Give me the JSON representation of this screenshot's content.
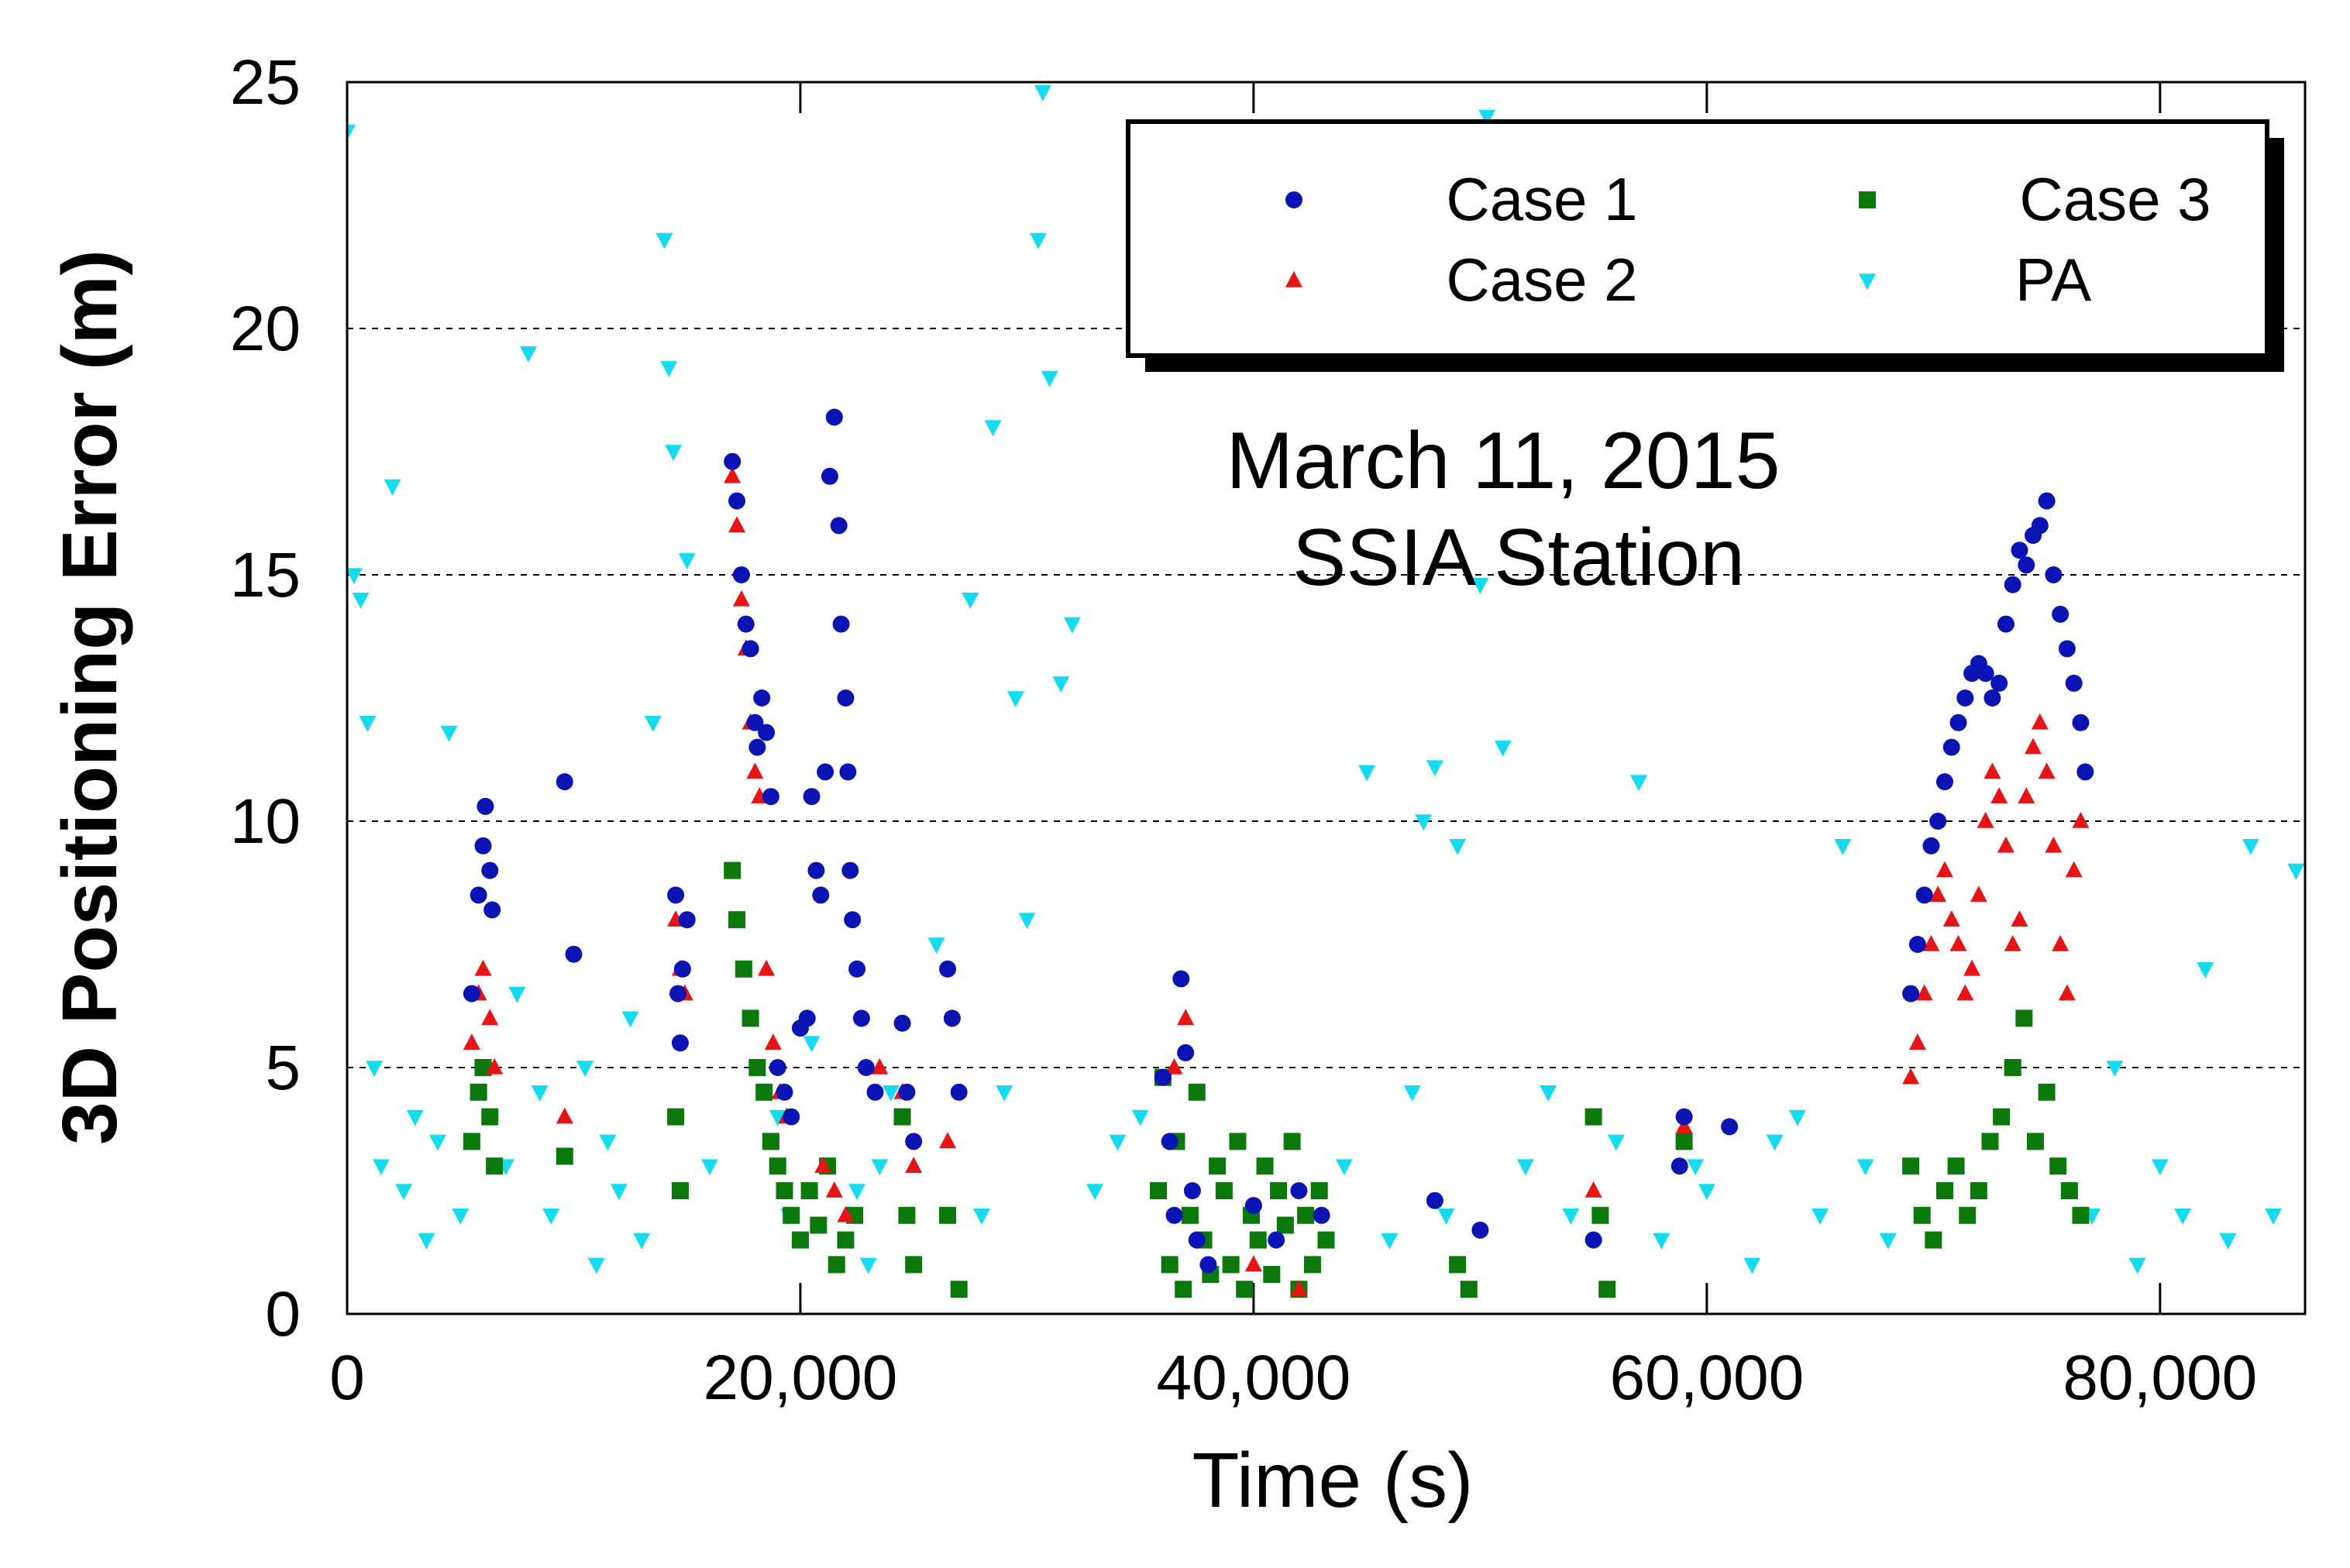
{
  "chart_data": {
    "type": "scatter",
    "title": "",
    "annotation": [
      "March 11, 2015",
      "SSIA Station"
    ],
    "xlabel": "Time (s)",
    "ylabel": "3D Positioning Error (m)",
    "xlim": [
      0,
      86400
    ],
    "ylim": [
      0,
      25
    ],
    "x_ticks": [
      0,
      20000,
      40000,
      60000,
      80000
    ],
    "x_tick_labels": [
      "0",
      "20,000",
      "40,000",
      "60,000",
      "80,000"
    ],
    "y_ticks": [
      0,
      5,
      10,
      15,
      20,
      25
    ],
    "y_tick_labels": [
      "0",
      "5",
      "10",
      "15",
      "20",
      "25"
    ],
    "gridlines_y": [
      5,
      10,
      15,
      20
    ],
    "legend_position": "top-right",
    "series": [
      {
        "name": "Case 1",
        "marker": "circle",
        "color": "#0a14b4",
        "x": [
          5500,
          5800,
          6000,
          6100,
          6300,
          6400,
          9600,
          10000,
          14500,
          14600,
          14700,
          14800,
          15000,
          17000,
          17200,
          17400,
          17600,
          17800,
          18000,
          18100,
          18300,
          18500,
          18700,
          19000,
          19300,
          19600,
          20000,
          20300,
          20500,
          20700,
          20900,
          21100,
          21300,
          21500,
          21700,
          21800,
          22000,
          22100,
          22200,
          22300,
          22500,
          22700,
          22900,
          23300,
          24500,
          24700,
          25000,
          26500,
          26700,
          27000,
          36000,
          36300,
          36500,
          36800,
          37000,
          37300,
          37500,
          38000,
          40000,
          41000,
          42000,
          43000,
          48000,
          50000,
          55000,
          58800,
          59000,
          61000,
          69000,
          69300,
          69600,
          69900,
          70200,
          70500,
          70800,
          71100,
          71400,
          71700,
          72000,
          72300,
          72600,
          72900,
          73200,
          73500,
          73800,
          74100,
          74400,
          74700,
          75000,
          75300,
          75600,
          75900,
          76200,
          76500,
          76700
        ],
        "y": [
          6.5,
          8.5,
          9.5,
          10.3,
          9.0,
          8.2,
          10.8,
          7.3,
          8.5,
          6.5,
          5.5,
          7.0,
          8.0,
          17.3,
          16.5,
          15.0,
          14.0,
          13.5,
          12.0,
          11.5,
          12.5,
          11.8,
          10.5,
          5.0,
          4.5,
          4.0,
          5.8,
          6.0,
          10.5,
          9.0,
          8.5,
          11.0,
          17.0,
          18.2,
          16.0,
          14.0,
          12.5,
          11.0,
          9.0,
          8.0,
          7.0,
          6.0,
          5.0,
          4.5,
          5.9,
          4.5,
          3.5,
          7.0,
          6.0,
          4.5,
          4.8,
          3.5,
          2.0,
          6.8,
          5.3,
          2.5,
          1.5,
          1.0,
          2.2,
          1.5,
          2.5,
          2.0,
          2.3,
          1.7,
          1.5,
          3.0,
          4.0,
          3.8,
          6.5,
          7.5,
          8.5,
          9.5,
          10.0,
          10.8,
          11.5,
          12.0,
          12.5,
          13.0,
          13.2,
          13.0,
          12.5,
          12.8,
          14.0,
          14.8,
          15.5,
          15.2,
          15.8,
          16.0,
          16.5,
          15.0,
          14.2,
          13.5,
          12.8,
          12.0,
          11.0
        ]
      },
      {
        "name": "Case 2",
        "marker": "triangle-up",
        "color": "#e61414",
        "x": [
          5500,
          5800,
          6000,
          6300,
          6500,
          9600,
          14500,
          14700,
          14900,
          17000,
          17200,
          17400,
          17600,
          17800,
          18000,
          18200,
          18500,
          18800,
          19100,
          19400,
          21000,
          21500,
          22000,
          23500,
          24500,
          25000,
          26500,
          36500,
          37000,
          40000,
          42000,
          55000,
          59000,
          69000,
          69300,
          69600,
          69900,
          70200,
          70500,
          70800,
          71100,
          71400,
          71700,
          72000,
          72300,
          72600,
          72900,
          73200,
          73500,
          73800,
          74100,
          74400,
          74700,
          75000,
          75300,
          75600,
          75900,
          76200,
          76500
        ],
        "y": [
          5.5,
          6.5,
          7.0,
          6.0,
          5.0,
          4.0,
          8.0,
          7.0,
          6.5,
          17.0,
          16.0,
          14.5,
          13.5,
          12.0,
          11.0,
          10.5,
          7.0,
          5.5,
          4.5,
          4.0,
          3.0,
          2.5,
          2.0,
          5.0,
          4.5,
          3.0,
          3.5,
          5.0,
          6.0,
          1.0,
          0.5,
          2.5,
          3.8,
          4.8,
          5.5,
          6.5,
          7.5,
          8.5,
          9.0,
          8.0,
          7.5,
          6.5,
          7.0,
          8.5,
          10.0,
          11.0,
          10.5,
          9.5,
          7.5,
          8.0,
          10.5,
          11.5,
          12.0,
          11.0,
          9.5,
          7.5,
          6.5,
          9.0,
          10.0
        ]
      },
      {
        "name": "Case 3",
        "marker": "square",
        "color": "#0a780a",
        "x": [
          5500,
          5800,
          6000,
          6300,
          6500,
          9600,
          14500,
          14700,
          17000,
          17200,
          17500,
          17800,
          18100,
          18400,
          18700,
          19000,
          19300,
          19600,
          20000,
          20400,
          20800,
          21200,
          21600,
          22000,
          22400,
          24500,
          24700,
          25000,
          26500,
          27000,
          35800,
          36000,
          36300,
          36600,
          36900,
          37200,
          37500,
          37800,
          38100,
          38400,
          38700,
          39000,
          39300,
          39600,
          39900,
          40200,
          40500,
          40800,
          41100,
          41400,
          41700,
          42000,
          42300,
          42600,
          42900,
          43200,
          49000,
          49500,
          55000,
          55300,
          55600,
          59000,
          69000,
          69500,
          70000,
          70500,
          71000,
          71500,
          72000,
          72500,
          73000,
          73500,
          74000,
          74500,
          75000,
          75500,
          76000,
          76500
        ],
        "y": [
          3.5,
          4.5,
          5.0,
          4.0,
          3.0,
          3.2,
          4.0,
          2.5,
          9.0,
          8.0,
          7.0,
          6.0,
          5.0,
          4.5,
          3.5,
          3.0,
          2.5,
          2.0,
          1.5,
          2.5,
          1.8,
          3.0,
          1.0,
          1.5,
          2.0,
          4.0,
          2.0,
          1.0,
          2.0,
          0.5,
          2.5,
          4.8,
          1.0,
          3.5,
          0.5,
          2.0,
          4.5,
          1.5,
          0.8,
          3.0,
          2.5,
          1.0,
          3.5,
          0.5,
          2.0,
          1.5,
          3.0,
          0.8,
          2.5,
          1.8,
          3.5,
          0.5,
          2.0,
          1.0,
          2.5,
          1.5,
          1.0,
          0.5,
          4.0,
          2.0,
          0.5,
          3.5,
          3.0,
          2.0,
          1.5,
          2.5,
          3.0,
          2.0,
          2.5,
          3.5,
          4.0,
          5.0,
          6.0,
          3.5,
          4.5,
          3.0,
          2.5,
          2.0
        ]
      },
      {
        "name": "PA",
        "marker": "triangle-down",
        "color": "#14dcf0",
        "x": [
          0,
          300,
          600,
          900,
          1200,
          1500,
          2000,
          2500,
          3000,
          3500,
          4000,
          4500,
          5000,
          7000,
          7500,
          8000,
          8500,
          9000,
          10500,
          11000,
          11500,
          12000,
          12500,
          13000,
          13500,
          14000,
          14200,
          14400,
          15000,
          16000,
          19000,
          19500,
          20500,
          22500,
          23000,
          23500,
          24000,
          26000,
          27500,
          28000,
          28500,
          29000,
          29500,
          30000,
          30500,
          30700,
          31000,
          31500,
          32000,
          33000,
          34000,
          35000,
          44000,
          45000,
          46000,
          47000,
          47500,
          48000,
          48500,
          49000,
          50000,
          50300,
          51000,
          52000,
          53000,
          54000,
          56000,
          57000,
          58000,
          59500,
          60000,
          62000,
          63000,
          64000,
          65000,
          66000,
          67000,
          68000,
          77000,
          78000,
          79000,
          80000,
          81000,
          82000,
          83000,
          84000,
          85000,
          86000
        ],
        "y": [
          24.0,
          15.0,
          14.5,
          12.0,
          5.0,
          3.0,
          16.8,
          2.5,
          4.0,
          1.5,
          3.5,
          11.8,
          2.0,
          3.0,
          6.5,
          19.5,
          4.5,
          2.0,
          5.0,
          1.0,
          3.5,
          2.5,
          6.0,
          1.5,
          12.0,
          21.8,
          19.2,
          17.5,
          15.3,
          3.0,
          4.0,
          2.0,
          5.5,
          2.5,
          1.0,
          3.0,
          4.5,
          7.5,
          14.5,
          2.0,
          18.0,
          4.5,
          12.5,
          8.0,
          21.8,
          24.8,
          19.0,
          12.8,
          14.0,
          2.5,
          3.5,
          4.0,
          3.0,
          11.0,
          1.5,
          4.5,
          10.0,
          11.1,
          2.0,
          9.5,
          14.8,
          24.3,
          11.5,
          3.0,
          4.5,
          2.0,
          3.5,
          10.8,
          1.5,
          3.0,
          2.5,
          1.0,
          3.5,
          4.0,
          2.0,
          9.5,
          3.0,
          1.5,
          2.0,
          5.0,
          1.0,
          3.0,
          2.0,
          7.0,
          1.5,
          9.5,
          2.0,
          9.0
        ]
      }
    ]
  }
}
